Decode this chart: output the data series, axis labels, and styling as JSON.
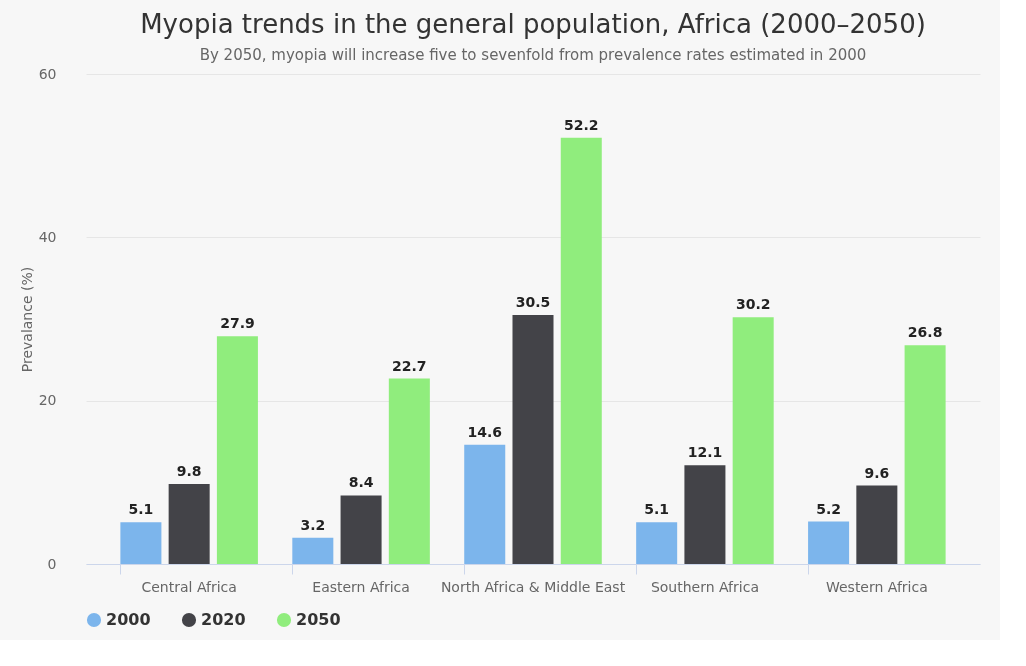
{
  "chart_data": {
    "type": "bar",
    "title": "Myopia trends in the general population, Africa (2000–2050)",
    "subtitle": "By 2050, myopia will increase five to sevenfold from prevalence rates estimated in 2000",
    "ylabel": "Prevalance (%)",
    "categories": [
      "Central Africa",
      "Eastern Africa",
      "North Africa & Middle East",
      "Southern Africa",
      "Western Africa"
    ],
    "series": [
      {
        "name": "2000",
        "color": "#7cb5ec",
        "values": [
          5.1,
          3.2,
          14.6,
          5.1,
          5.2
        ]
      },
      {
        "name": "2020",
        "color": "#434348",
        "values": [
          9.8,
          8.4,
          30.5,
          12.1,
          9.6
        ]
      },
      {
        "name": "2050",
        "color": "#90ed7d",
        "values": [
          27.9,
          22.7,
          52.2,
          30.2,
          26.8
        ]
      }
    ],
    "ylim": [
      0,
      60
    ],
    "yticks": [
      0,
      20,
      40,
      60
    ],
    "grid": "y",
    "legend": "bottom",
    "data_labels": true
  }
}
